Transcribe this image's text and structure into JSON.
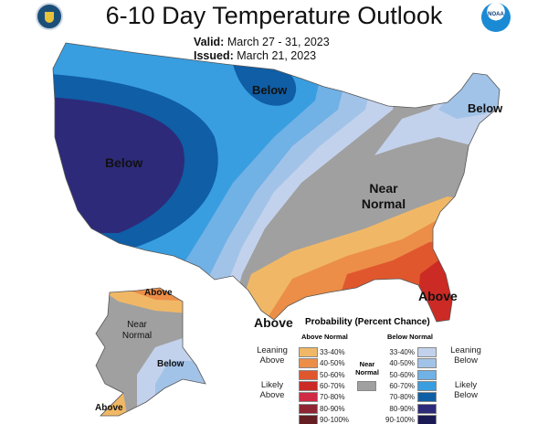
{
  "header": {
    "title": "6-10 Day Temperature Outlook",
    "valid_label": "Valid:",
    "valid_dates": "March 27 - 31, 2023",
    "issued_label": "Issued:",
    "issued_date": "March 21, 2023",
    "left_logo": "doc-seal-logo",
    "right_logo": "noaa-logo",
    "noaa_text": "NOAA"
  },
  "map_labels": {
    "west": "Below",
    "north": "Below",
    "northeast": "Below",
    "near_normal": "Near Normal",
    "southeast": "Above",
    "gulf": "Above",
    "ak_north": "Above",
    "ak_near": "Near Normal",
    "ak_south": "Below",
    "ak_sw": "Above"
  },
  "legend": {
    "title": "Probability (Percent Chance)",
    "above_header": "Above Normal",
    "below_header": "Below Normal",
    "near_label": "Near Normal",
    "near_color": "#a0a0a0",
    "leaning_above": "Leaning Above",
    "likely_above": "Likely Above",
    "leaning_below": "Leaning Below",
    "likely_below": "Likely Below",
    "above": [
      {
        "range": "33-40%",
        "color": "#f0b866"
      },
      {
        "range": "40-50%",
        "color": "#ec8e47"
      },
      {
        "range": "50-60%",
        "color": "#e0572e"
      },
      {
        "range": "60-70%",
        "color": "#cc2a24"
      },
      {
        "range": "70-80%",
        "color": "#d02a45"
      },
      {
        "range": "80-90%",
        "color": "#8f2533"
      },
      {
        "range": "90-100%",
        "color": "#651e24"
      }
    ],
    "below": [
      {
        "range": "33-40%",
        "color": "#c3d2ec"
      },
      {
        "range": "40-50%",
        "color": "#a2c3e8"
      },
      {
        "range": "50-60%",
        "color": "#70b1e6"
      },
      {
        "range": "60-70%",
        "color": "#389ee0"
      },
      {
        "range": "70-80%",
        "color": "#0f5ea6"
      },
      {
        "range": "80-90%",
        "color": "#2d2a7a"
      },
      {
        "range": "90-100%",
        "color": "#1c1a55"
      }
    ]
  }
}
